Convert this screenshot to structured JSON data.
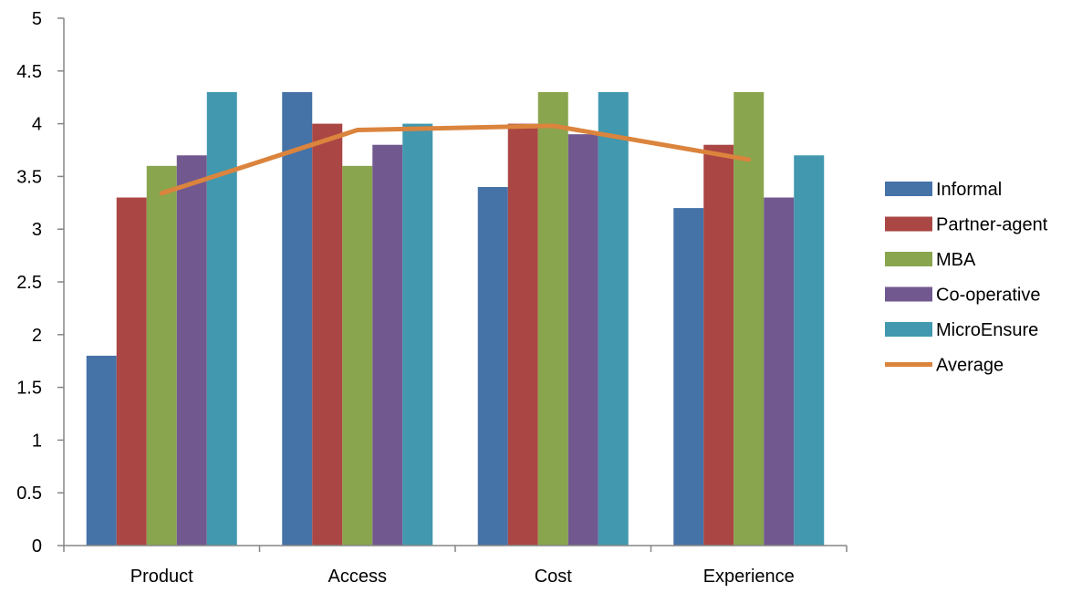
{
  "chart_data": {
    "type": "bar",
    "categories": [
      "Product",
      "Access",
      "Cost",
      "Experience"
    ],
    "series": [
      {
        "name": "Informal",
        "type": "bar",
        "color": "#4572A7",
        "values": [
          1.8,
          4.3,
          3.4,
          3.2
        ]
      },
      {
        "name": "Partner-agent",
        "type": "bar",
        "color": "#AA4643",
        "values": [
          3.3,
          4.0,
          4.0,
          3.8
        ]
      },
      {
        "name": "MBA",
        "type": "bar",
        "color": "#89A54E",
        "values": [
          3.6,
          3.6,
          4.3,
          4.3
        ]
      },
      {
        "name": "Co-operative",
        "type": "bar",
        "color": "#71588F",
        "values": [
          3.7,
          3.8,
          3.9,
          3.3
        ]
      },
      {
        "name": "MicroEnsure",
        "type": "bar",
        "color": "#4198AF",
        "values": [
          4.3,
          4.0,
          4.3,
          3.7
        ]
      },
      {
        "name": "Average",
        "type": "line",
        "color": "#DB843D",
        "values": [
          3.34,
          3.94,
          3.98,
          3.66
        ]
      }
    ],
    "y_ticks": [
      "0",
      "0.5",
      "1",
      "1.5",
      "2",
      "2.5",
      "3",
      "3.5",
      "4",
      "4.5",
      "5"
    ],
    "ylim": [
      0,
      5
    ],
    "ystep": 0.5,
    "grid": false,
    "legend": "right"
  }
}
